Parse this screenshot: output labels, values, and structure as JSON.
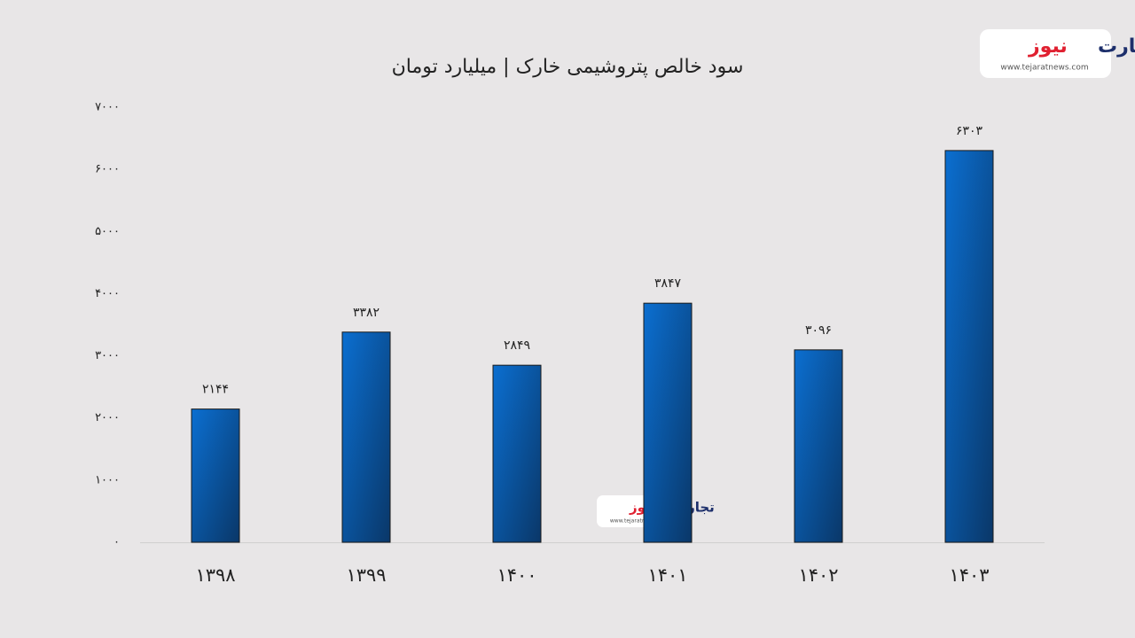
{
  "chart_data": {
    "type": "bar",
    "title": "سود خالص پتروشیمی خارک | میلیارد تومان",
    "categories": [
      "۱۳۹۸",
      "۱۳۹۹",
      "۱۴۰۰",
      "۱۴۰۱",
      "۱۴۰۲",
      "۱۴۰۳"
    ],
    "values": [
      2144,
      3382,
      2849,
      3847,
      3096,
      6303
    ],
    "value_labels": [
      "۲۱۴۴",
      "۳۳۸۲",
      "۲۸۴۹",
      "۳۸۴۷",
      "۳۰۹۶",
      "۶۳۰۳"
    ],
    "color": "#0b6fd1",
    "ylim": [
      0,
      7000
    ],
    "yticks": [
      {
        "value": 0,
        "label": "۰"
      },
      {
        "value": 1000,
        "label": "۱۰۰۰"
      },
      {
        "value": 2000,
        "label": "۲۰۰۰"
      },
      {
        "value": 3000,
        "label": "۳۰۰۰"
      },
      {
        "value": 4000,
        "label": "۴۰۰۰"
      },
      {
        "value": 5000,
        "label": "۵۰۰۰"
      },
      {
        "value": 6000,
        "label": "۶۰۰۰"
      },
      {
        "value": 7000,
        "label": "۷۰۰۰"
      }
    ],
    "grid": false
  },
  "logo": {
    "word1": "تجارت",
    "word2": "نیوز",
    "url": "www.tejaratnews.com"
  }
}
